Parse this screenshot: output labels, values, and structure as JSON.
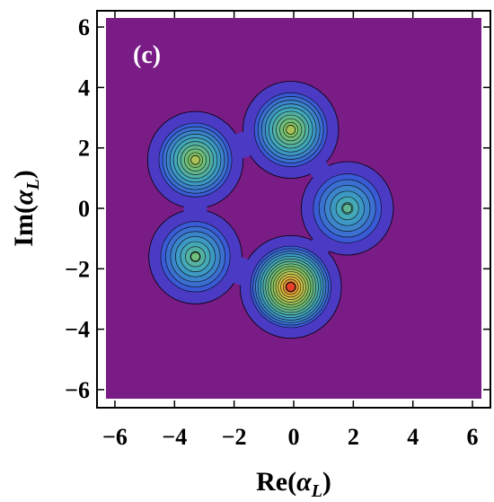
{
  "chart_data": {
    "type": "contour",
    "panel_label": "(c)",
    "xlabel": "Re(",
    "xlabel_symbol": "α",
    "xlabel_sub": "L",
    "xlabel_close": ")",
    "ylabel": "Im(",
    "ylabel_symbol": "α",
    "ylabel_sub": "L",
    "ylabel_close": ")",
    "xlim": [
      -6.3,
      6.3
    ],
    "ylim": [
      -6.3,
      6.3
    ],
    "x_ticks": [
      -6,
      -4,
      -2,
      0,
      2,
      4,
      6
    ],
    "x_tick_labels": [
      "−6",
      "−4",
      "−2",
      "0",
      "2",
      "4",
      "6"
    ],
    "y_ticks": [
      -6,
      -4,
      -2,
      0,
      2,
      4,
      6
    ],
    "y_tick_labels": [
      "−6",
      "−4",
      "−2",
      "0",
      "2",
      "4",
      "6"
    ],
    "peaks": [
      {
        "x": -3.3,
        "y": 1.6,
        "height": 0.62
      },
      {
        "x": -0.1,
        "y": 2.6,
        "height": 0.62
      },
      {
        "x": 1.8,
        "y": 0.0,
        "height": 0.38
      },
      {
        "x": -3.3,
        "y": -1.6,
        "height": 0.45
      },
      {
        "x": -0.1,
        "y": -2.6,
        "height": 1.0
      }
    ],
    "colors": {
      "background": "#7a1c86",
      "outer_plateau": "#4b3bc4",
      "low": "#3a55d8",
      "mid_low": "#3ea6c0",
      "mid": "#7cc46a",
      "mid_high": "#e0c040",
      "high": "#e8402a",
      "contour_line": "#000000"
    },
    "grid": false
  }
}
